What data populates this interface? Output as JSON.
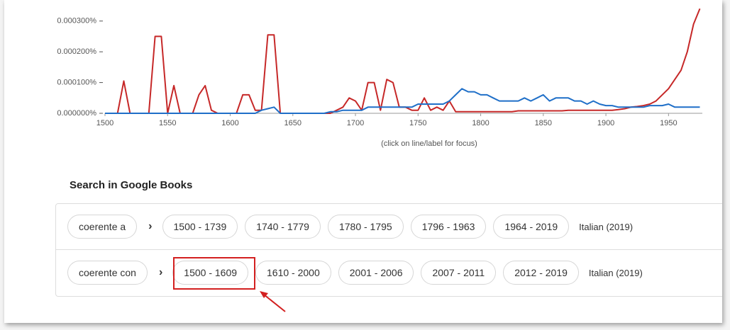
{
  "chart_data": {
    "type": "line",
    "x": [
      1500,
      1505,
      1510,
      1515,
      1520,
      1525,
      1530,
      1535,
      1540,
      1545,
      1550,
      1555,
      1560,
      1565,
      1570,
      1575,
      1580,
      1585,
      1590,
      1595,
      1600,
      1605,
      1610,
      1615,
      1620,
      1625,
      1630,
      1635,
      1640,
      1645,
      1650,
      1655,
      1660,
      1665,
      1670,
      1675,
      1680,
      1685,
      1690,
      1695,
      1700,
      1705,
      1710,
      1715,
      1720,
      1725,
      1730,
      1735,
      1740,
      1745,
      1750,
      1755,
      1760,
      1765,
      1770,
      1775,
      1780,
      1785,
      1790,
      1795,
      1800,
      1805,
      1810,
      1815,
      1820,
      1825,
      1830,
      1835,
      1840,
      1845,
      1850,
      1855,
      1860,
      1865,
      1870,
      1875,
      1880,
      1885,
      1890,
      1895,
      1900,
      1905,
      1910,
      1915,
      1920,
      1925,
      1930,
      1935,
      1940,
      1945,
      1950,
      1955,
      1960,
      1965,
      1970,
      1975
    ],
    "series": [
      {
        "color": "#c62828",
        "values": [
          0,
          0,
          0,
          0.000105,
          0,
          0,
          0,
          0,
          0.00025,
          0.00025,
          0,
          9e-05,
          0,
          0,
          0,
          6e-05,
          9e-05,
          1e-05,
          0,
          0,
          0,
          0,
          6e-05,
          6e-05,
          1e-05,
          1e-05,
          0.000255,
          0.000255,
          0,
          0,
          0,
          0,
          0,
          0,
          0,
          0,
          0,
          1e-05,
          2e-05,
          5e-05,
          4e-05,
          1e-05,
          0.0001,
          0.0001,
          1e-05,
          0.00011,
          0.0001,
          2e-05,
          2e-05,
          1e-05,
          1e-05,
          5e-05,
          1e-05,
          2e-05,
          1e-05,
          4e-05,
          5e-06,
          5e-06,
          5e-06,
          5e-06,
          5e-06,
          5e-06,
          5e-06,
          5e-06,
          5e-06,
          5e-06,
          8e-06,
          8e-06,
          8e-06,
          8e-06,
          8e-06,
          8e-06,
          8e-06,
          8e-06,
          1e-05,
          1e-05,
          1e-05,
          1e-05,
          1e-05,
          1e-05,
          1e-05,
          1e-05,
          1.2e-05,
          1.5e-05,
          2e-05,
          2.2e-05,
          2.5e-05,
          3e-05,
          4e-05,
          6e-05,
          8e-05,
          0.00011,
          0.00014,
          0.0002,
          0.00029,
          0.00034
        ]
      },
      {
        "color": "#1f6fc8",
        "values": [
          0,
          0,
          0,
          0,
          0,
          0,
          0,
          0,
          0,
          0,
          0,
          0,
          0,
          0,
          0,
          0,
          0,
          0,
          0,
          0,
          0,
          0,
          0,
          0,
          0,
          1e-05,
          1.5e-05,
          2e-05,
          0,
          0,
          0,
          0,
          0,
          0,
          0,
          0,
          5e-06,
          5e-06,
          1e-05,
          1e-05,
          1e-05,
          1e-05,
          2e-05,
          2e-05,
          2e-05,
          2e-05,
          2e-05,
          2e-05,
          2e-05,
          2e-05,
          3e-05,
          3e-05,
          3e-05,
          3e-05,
          3e-05,
          4e-05,
          6e-05,
          8e-05,
          7e-05,
          7e-05,
          6e-05,
          6e-05,
          5e-05,
          4e-05,
          4e-05,
          4e-05,
          4e-05,
          5e-05,
          4e-05,
          5e-05,
          6e-05,
          4e-05,
          5e-05,
          5e-05,
          5e-05,
          4e-05,
          4e-05,
          3e-05,
          4e-05,
          3e-05,
          2.5e-05,
          2.5e-05,
          2e-05,
          2e-05,
          2e-05,
          2e-05,
          2e-05,
          2.5e-05,
          2.5e-05,
          2.5e-05,
          3e-05,
          2e-05,
          2e-05,
          2e-05,
          2e-05,
          2e-05
        ]
      }
    ],
    "xlim": [
      1500,
      1977
    ],
    "xticks": [
      1500,
      1550,
      1600,
      1650,
      1700,
      1750,
      1800,
      1850,
      1900,
      1950
    ],
    "ylim": [
      0,
      0.00035
    ],
    "yticks": [
      {
        "value": 0,
        "label": "0.000000%"
      },
      {
        "value": 0.0001,
        "label": "0.000100%"
      },
      {
        "value": 0.0002,
        "label": "0.000200%"
      },
      {
        "value": 0.0003,
        "label": "0.000300%"
      }
    ],
    "note": "(click on line/label for focus)"
  },
  "search": {
    "title": "Search in Google Books",
    "rows": [
      {
        "query": "coerente a",
        "ranges": [
          "1500 - 1739",
          "1740 - 1779",
          "1780 - 1795",
          "1796 - 1963",
          "1964 - 2019"
        ],
        "corpus": "Italian (2019)"
      },
      {
        "query": "coerente con",
        "ranges": [
          "1500 - 1609",
          "1610 - 2000",
          "2001 - 2006",
          "2007 - 2011",
          "2012 - 2019"
        ],
        "corpus": "Italian (2019)"
      }
    ]
  }
}
